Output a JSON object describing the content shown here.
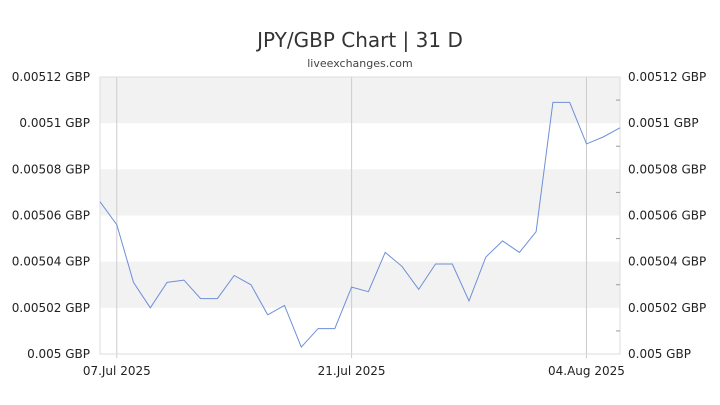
{
  "header": {
    "title": "JPY/GBP Chart | 31 D",
    "source": "liveexchanges.com"
  },
  "chart_data": {
    "type": "line",
    "title": "JPY/GBP Chart | 31 D",
    "subtitle": "liveexchanges.com",
    "xlabel": "",
    "ylabel": "",
    "x_ticks": [
      "07.Jul 2025",
      "21.Jul 2025",
      "04.Aug 2025"
    ],
    "y_ticks": [
      "0.005 GBP",
      "0.00502 GBP",
      "0.00504 GBP",
      "0.00506 GBP",
      "0.00508 GBP",
      "0.0051 GBP",
      "0.00512 GBP"
    ],
    "ylim": [
      0.005,
      0.00512
    ],
    "grid": "alternating horizontal bands",
    "line_color": "#6f8fd9",
    "series": [
      {
        "x": [
          "2025-07-06",
          "2025-07-07",
          "2025-07-08",
          "2025-07-09",
          "2025-07-10",
          "2025-07-11",
          "2025-07-12",
          "2025-07-13",
          "2025-07-14",
          "2025-07-15",
          "2025-07-16",
          "2025-07-17",
          "2025-07-18",
          "2025-07-19",
          "2025-07-20",
          "2025-07-21",
          "2025-07-22",
          "2025-07-23",
          "2025-07-24",
          "2025-07-25",
          "2025-07-26",
          "2025-07-27",
          "2025-07-28",
          "2025-07-29",
          "2025-07-30",
          "2025-07-31",
          "2025-08-01",
          "2025-08-02",
          "2025-08-03",
          "2025-08-04",
          "2025-08-05",
          "2025-08-06"
        ],
        "values": [
          0.005066,
          0.005056,
          0.005031,
          0.00502,
          0.005031,
          0.005032,
          0.005024,
          0.005024,
          0.005034,
          0.00503,
          0.005017,
          0.005021,
          0.005003,
          0.005011,
          0.005011,
          0.005029,
          0.005027,
          0.005044,
          0.005038,
          0.005028,
          0.005039,
          0.005039,
          0.005023,
          0.005042,
          0.005049,
          0.005044,
          0.005053,
          0.005109,
          0.005109,
          0.005091,
          0.005094,
          0.005098
        ]
      }
    ]
  }
}
